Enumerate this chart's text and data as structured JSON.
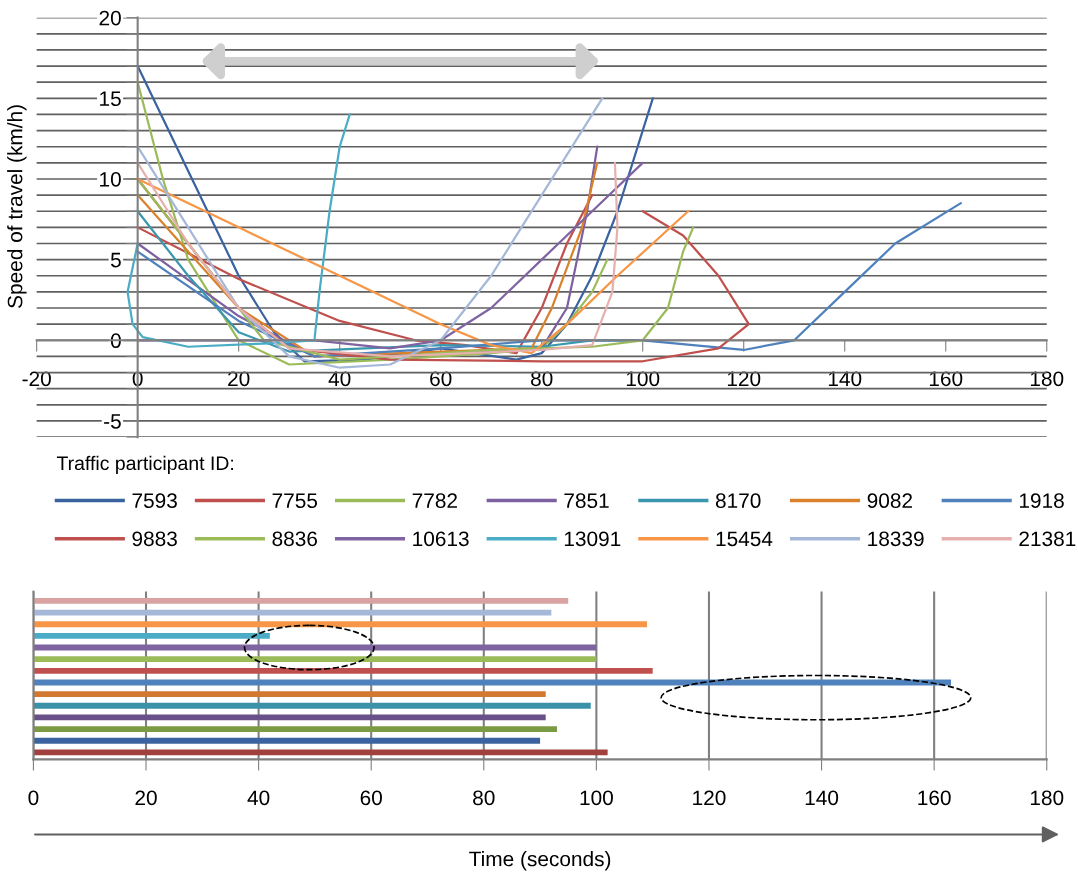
{
  "chart_data": [
    {
      "type": "line",
      "ylabel": "Speed of travel (km/h)",
      "legend_title": "Traffic participant ID:",
      "legend": "bottom",
      "grid": "y",
      "marker": "none",
      "line_style": "solid",
      "xlim": [
        -20,
        180
      ],
      "xticks": [
        -20,
        0,
        20,
        40,
        60,
        80,
        100,
        120,
        140,
        160,
        180
      ],
      "ylim": [
        -6,
        20
      ],
      "yticks": [
        {
          "value": -6,
          "label": null
        },
        -5,
        {
          "value": -4,
          "label": null
        },
        {
          "value": -3,
          "label": null
        },
        {
          "value": -2,
          "label": null
        },
        {
          "value": -1,
          "label": null
        },
        0,
        {
          "value": 1,
          "label": null
        },
        {
          "value": 2,
          "label": null
        },
        {
          "value": 3,
          "label": null
        },
        {
          "value": 4,
          "label": null
        },
        5,
        {
          "value": 6,
          "label": null
        },
        {
          "value": 7,
          "label": null
        },
        {
          "value": 8,
          "label": null
        },
        {
          "value": 9,
          "label": null
        },
        10,
        {
          "value": 11,
          "label": null
        },
        {
          "value": 12,
          "label": null
        },
        {
          "value": 13,
          "label": null
        },
        {
          "value": 14,
          "label": null
        },
        15,
        {
          "value": 16,
          "label": null
        },
        {
          "value": 17,
          "label": null
        },
        {
          "value": 18,
          "label": null
        },
        {
          "value": 19,
          "label": null
        },
        20
      ],
      "series": [
        {
          "name": "7593",
          "color": "#3a63a0",
          "x": [
            0,
            10,
            20,
            27,
            33,
            45,
            60,
            75,
            80,
            85,
            90,
            95,
            102
          ],
          "values": [
            17,
            10.5,
            4,
            0.5,
            -1.3,
            -1.2,
            -0.5,
            -1.2,
            -0.8,
            1,
            4,
            8,
            15
          ]
        },
        {
          "name": "7755",
          "color": "#c0504d",
          "x": [
            0,
            20,
            40,
            55,
            65,
            75,
            80,
            85,
            90
          ],
          "values": [
            7,
            3.8,
            1.2,
            0,
            -0.3,
            -0.8,
            2,
            6,
            9
          ]
        },
        {
          "name": "7782",
          "color": "#9bbb59",
          "x": [
            0,
            5,
            10,
            20,
            30,
            50,
            70,
            80,
            85,
            90,
            93
          ],
          "values": [
            16,
            10,
            5,
            0,
            -1.5,
            -1.2,
            -0.8,
            -0.5,
            1,
            3,
            5
          ]
        },
        {
          "name": "7851",
          "color": "#7d60a0",
          "x": [
            0,
            20,
            35,
            60,
            80,
            85,
            89,
            91
          ],
          "values": [
            6,
            1.5,
            -1,
            -0.8,
            -0.5,
            2,
            8,
            12
          ]
        },
        {
          "name": "8170",
          "color": "#3a97ad",
          "x": [
            0,
            10,
            20,
            30,
            60,
            80,
            90,
            99
          ],
          "values": [
            8,
            4,
            0.5,
            -0.7,
            -0.3,
            -0.4,
            0,
            0
          ]
        },
        {
          "name": "9082",
          "color": "#d9822b",
          "x": [
            0,
            20,
            35,
            60,
            78,
            82,
            88,
            91
          ],
          "values": [
            9,
            2,
            -1,
            -0.7,
            -0.5,
            2,
            7,
            11
          ]
        },
        {
          "name": "1918",
          "color": "#4f81bd",
          "x": [
            0,
            20,
            35,
            60,
            80,
            100,
            110,
            120,
            130,
            140,
            150,
            163
          ],
          "values": [
            5.5,
            1.2,
            -1,
            -0.5,
            0,
            0,
            -0.3,
            -0.6,
            0,
            3,
            6,
            8.5
          ]
        },
        {
          "name": "9883",
          "color": "#c0504d",
          "x": [
            0,
            10,
            20,
            30,
            50,
            80,
            100,
            115,
            121,
            115,
            108,
            100
          ],
          "values": [
            10,
            6,
            2,
            -0.5,
            -1.2,
            -1.3,
            -1.3,
            -0.5,
            1,
            4,
            6.5,
            8
          ]
        },
        {
          "name": "8836",
          "color": "#9bbb59",
          "x": [
            0,
            10,
            25,
            40,
            70,
            90,
            100,
            105,
            108,
            110
          ],
          "values": [
            10,
            6,
            0,
            -1.2,
            -0.6,
            -0.4,
            0,
            2,
            5.5,
            7
          ]
        },
        {
          "name": "10613",
          "color": "#8064a2",
          "x": [
            0,
            35,
            50,
            60,
            70,
            80,
            90,
            100
          ],
          "values": [
            0,
            0,
            -0.5,
            0,
            2,
            5,
            8,
            11
          ]
        },
        {
          "name": "13091",
          "color": "#4bacc6",
          "x": [
            0,
            -2,
            -1,
            1,
            10,
            25,
            35,
            36,
            38,
            40,
            42
          ],
          "values": [
            6,
            3,
            1,
            0.2,
            -0.4,
            -0.2,
            0,
            3,
            8,
            12,
            14
          ]
        },
        {
          "name": "15454",
          "color": "#f79646",
          "x": [
            0,
            20,
            40,
            60,
            70,
            78,
            85,
            95,
            109
          ],
          "values": [
            10,
            7,
            4,
            1,
            -0.3,
            -0.8,
            1,
            4,
            8
          ]
        },
        {
          "name": "18339",
          "color": "#a5b8d8",
          "x": [
            0,
            10,
            20,
            30,
            40,
            50,
            60,
            70,
            80,
            92
          ],
          "values": [
            12,
            7,
            2,
            -1,
            -1.7,
            -1.5,
            0,
            4,
            9,
            15
          ]
        },
        {
          "name": "21381",
          "color": "#e6b0ae",
          "x": [
            0,
            10,
            20,
            30,
            50,
            80,
            90,
            94,
            95,
            94.5
          ],
          "values": [
            11,
            6,
            2,
            -0.5,
            -1,
            -0.6,
            -0.3,
            3,
            7,
            11
          ]
        }
      ]
    },
    {
      "type": "bar",
      "orientation": "horizontal",
      "xlabel": "Time (seconds)",
      "grid": "x",
      "tick_labels": "x",
      "xlim": [
        0,
        180
      ],
      "xticks": [
        0,
        20,
        40,
        60,
        80,
        100,
        120,
        140,
        160,
        180
      ],
      "categories": [
        null,
        null,
        null,
        null,
        null,
        null,
        null,
        null,
        null,
        null,
        null,
        null,
        null,
        null
      ],
      "values": [
        95,
        92,
        109,
        42,
        100,
        100,
        110,
        163,
        91,
        99,
        91,
        93,
        90,
        102
      ],
      "colors": [
        "#d9a3a2",
        "#a5b8d8",
        "#f79646",
        "#4bacc6",
        "#8064a2",
        "#9bbb59",
        "#c0504d",
        "#4f81bd",
        "#d2792f",
        "#3a91a8",
        "#6a5088",
        "#7a9a43",
        "#3a63a0",
        "#a0413e"
      ]
    }
  ]
}
